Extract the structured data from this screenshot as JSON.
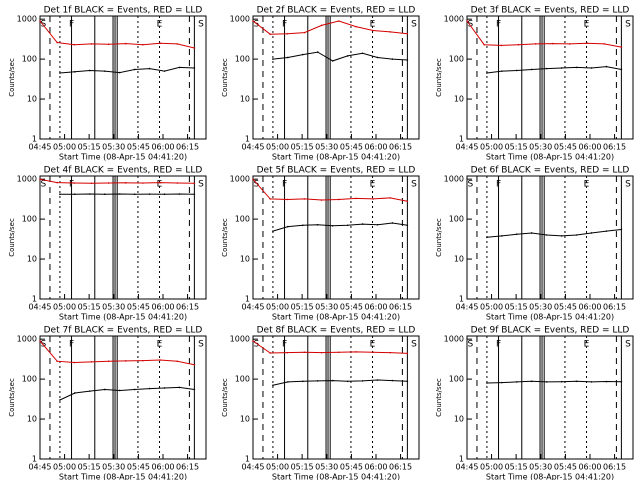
{
  "figure": {
    "xlabel": "Start Time (08-Apr-15 04:41:20)",
    "ylabel": "Counts/sec",
    "colors": {
      "events": "#000000",
      "lld": "#d40000",
      "axes": "#000000"
    },
    "x_ticks": [
      "04:45",
      "05:00",
      "05:15",
      "05:30",
      "05:45",
      "06:00",
      "06:15"
    ],
    "y_ticks": [
      "1",
      "10",
      "100",
      "1000"
    ],
    "markers": {
      "start": "S",
      "end": "E",
      "flare": "F",
      "eclipse": "E",
      "saa": "S"
    }
  },
  "chart_data": [
    {
      "type": "line",
      "title": "Det 1f BLACK = Events, RED = LLD",
      "yscale": "log",
      "ylim": [
        1,
        1200
      ],
      "series": [
        {
          "name": "BLACK = Events",
          "values": [
            45,
            48,
            52,
            50,
            46,
            55,
            58,
            50,
            62,
            60
          ]
        },
        {
          "name": "RED = LLD",
          "values": [
            900,
            260,
            230,
            240,
            235,
            245,
            230,
            250,
            240,
            190
          ]
        }
      ]
    },
    {
      "type": "line",
      "title": "Det 2f BLACK = Events, RED = LLD",
      "yscale": "log",
      "ylim": [
        1,
        1200
      ],
      "series": [
        {
          "name": "BLACK = Events",
          "values": [
            100,
            110,
            130,
            150,
            90,
            120,
            140,
            110,
            100,
            95
          ]
        },
        {
          "name": "RED = LLD",
          "values": [
            900,
            420,
            430,
            460,
            700,
            900,
            650,
            520,
            480,
            430
          ]
        }
      ]
    },
    {
      "type": "line",
      "title": "Det 3f BLACK = Events, RED = LLD",
      "yscale": "log",
      "ylim": [
        1,
        1200
      ],
      "series": [
        {
          "name": "BLACK = Events",
          "values": [
            45,
            50,
            52,
            55,
            58,
            60,
            62,
            60,
            65,
            55
          ]
        },
        {
          "name": "RED = LLD",
          "values": [
            900,
            230,
            220,
            230,
            240,
            245,
            240,
            250,
            240,
            200
          ]
        }
      ]
    },
    {
      "type": "line",
      "title": "Det 4f BLACK = Events, RED = LLD",
      "yscale": "log",
      "ylim": [
        1,
        1200
      ],
      "series": [
        {
          "name": "BLACK = Events",
          "values": [
            420,
            420,
            425,
            420,
            425,
            420,
            422,
            420,
            425,
            420
          ]
        },
        {
          "name": "RED = LLD",
          "values": [
            1000,
            820,
            800,
            790,
            800,
            810,
            800,
            820,
            800,
            790
          ]
        }
      ]
    },
    {
      "type": "line",
      "title": "Det 5f BLACK = Events, RED = LLD",
      "yscale": "log",
      "ylim": [
        1,
        1200
      ],
      "series": [
        {
          "name": "BLACK = Events",
          "values": [
            50,
            65,
            70,
            72,
            68,
            70,
            75,
            72,
            80,
            70
          ]
        },
        {
          "name": "RED = LLD",
          "values": [
            1000,
            320,
            310,
            320,
            300,
            310,
            330,
            320,
            340,
            280
          ]
        }
      ]
    },
    {
      "type": "line",
      "title": "Det 6f BLACK = Events, RED = LLD",
      "yscale": "log",
      "ylim": [
        1,
        1200
      ],
      "series": [
        {
          "name": "BLACK = Events",
          "values": [
            35,
            38,
            42,
            45,
            40,
            38,
            40,
            45,
            50,
            55
          ]
        }
      ]
    },
    {
      "type": "line",
      "title": "Det 7f BLACK = Events, RED = LLD",
      "yscale": "log",
      "ylim": [
        1,
        1200
      ],
      "series": [
        {
          "name": "BLACK = Events",
          "values": [
            30,
            45,
            50,
            55,
            52,
            55,
            58,
            60,
            62,
            55
          ]
        },
        {
          "name": "RED = LLD",
          "values": [
            900,
            280,
            260,
            270,
            280,
            285,
            290,
            300,
            280,
            230
          ]
        }
      ]
    },
    {
      "type": "line",
      "title": "Det 8f BLACK = Events, RED = LLD",
      "yscale": "log",
      "ylim": [
        1,
        1200
      ],
      "series": [
        {
          "name": "BLACK = Events",
          "values": [
            70,
            85,
            88,
            90,
            92,
            88,
            90,
            95,
            92,
            88
          ]
        },
        {
          "name": "RED = LLD",
          "values": [
            900,
            450,
            460,
            470,
            460,
            470,
            480,
            470,
            460,
            440
          ]
        }
      ]
    },
    {
      "type": "line",
      "title": "Det 9f BLACK = Events, RED = LLD",
      "yscale": "log",
      "ylim": [
        1,
        1200
      ],
      "series": [
        {
          "name": "BLACK = Events",
          "values": [
            80,
            82,
            85,
            88,
            85,
            86,
            88,
            85,
            87,
            86
          ]
        }
      ]
    }
  ]
}
